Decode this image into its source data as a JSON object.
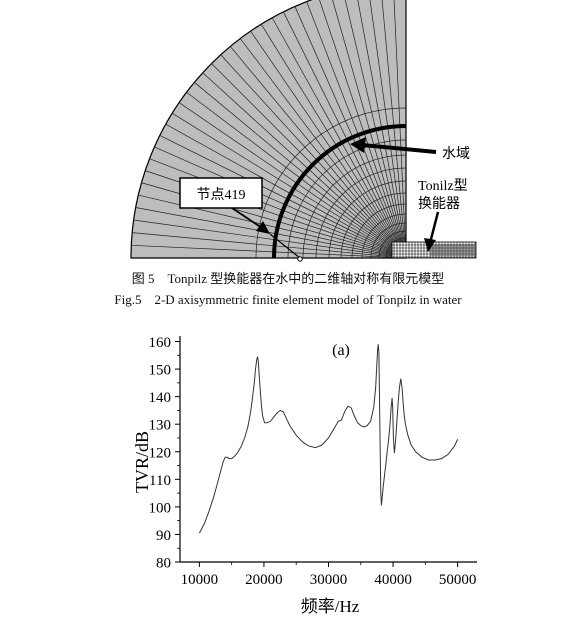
{
  "figure5": {
    "water_label": "水域",
    "transducer_label_line1": "Tonilz型",
    "transducer_label_line2": "换能器",
    "node_label": "节点419",
    "caption_cn": "图 5　Tonpilz 型换能器在水中的二维轴对称有限元模型",
    "caption_en": "Fig.5　2-D axisymmetric finite element model of Tonpilz in water"
  },
  "chart_data": {
    "type": "line",
    "title": "(a)",
    "xlabel": "频率/Hz",
    "ylabel": "TVR/dB",
    "xlim": [
      7000,
      53000
    ],
    "ylim": [
      80,
      162
    ],
    "xticks": [
      "10000",
      "20000",
      "30000",
      "40000",
      "50000"
    ],
    "yticks": [
      "80",
      "90",
      "100",
      "110",
      "120",
      "130",
      "140",
      "150",
      "160"
    ],
    "grid": false,
    "series": [
      {
        "x": [
          10000,
          10800,
          11500,
          12200,
          12800,
          13300,
          13700,
          14000,
          14300,
          14600,
          15000,
          15500,
          16000,
          16500,
          17000,
          17500,
          17900,
          18200,
          18500,
          18700,
          18900,
          19000,
          19100,
          19200,
          19400,
          19600,
          19800,
          20100,
          20500,
          21000,
          21500,
          22000,
          22500,
          23000,
          23500,
          24000,
          25000,
          26000,
          27000,
          28000,
          29000,
          30000,
          30500,
          31000,
          31500,
          32000,
          32500,
          33000,
          33500,
          34000,
          34500,
          35000,
          35500,
          36000,
          36500,
          37000,
          37300,
          37500,
          37600,
          37700,
          37800,
          37900,
          38000,
          38100,
          38200,
          38300,
          38500,
          38700,
          38900,
          39100,
          39300,
          39500,
          39700,
          39850,
          39950,
          40050,
          40200,
          40400,
          40600,
          40800,
          41000,
          41200,
          41400,
          41550,
          41700,
          41850,
          42000,
          42300,
          42800,
          43500,
          44500,
          45500,
          46500,
          47500,
          48500,
          49500,
          50000
        ],
        "y": [
          90.5,
          94,
          98.5,
          103.5,
          108.5,
          113,
          116.5,
          118,
          118,
          117.5,
          117.5,
          118.5,
          120,
          122,
          125,
          129,
          134,
          139,
          145,
          150,
          153.5,
          154.5,
          153.5,
          150,
          143,
          137,
          133,
          130.5,
          130.5,
          131,
          132.5,
          134,
          135,
          134.5,
          132,
          129.5,
          126,
          123.5,
          122,
          121.5,
          122.5,
          125,
          127,
          129,
          131,
          131.5,
          134.5,
          136.5,
          136,
          133,
          130.5,
          129.5,
          129,
          129.5,
          131,
          136,
          143,
          152,
          157,
          159,
          156,
          140,
          120,
          105,
          100.5,
          103,
          108,
          112,
          116,
          120.5,
          124,
          129,
          136,
          139.5,
          136,
          125,
          119.5,
          124,
          131,
          138,
          143.5,
          146.5,
          143,
          138,
          134,
          131,
          129,
          126,
          122.5,
          120,
          118,
          117,
          117,
          117.5,
          119,
          122,
          124.5
        ]
      }
    ]
  }
}
